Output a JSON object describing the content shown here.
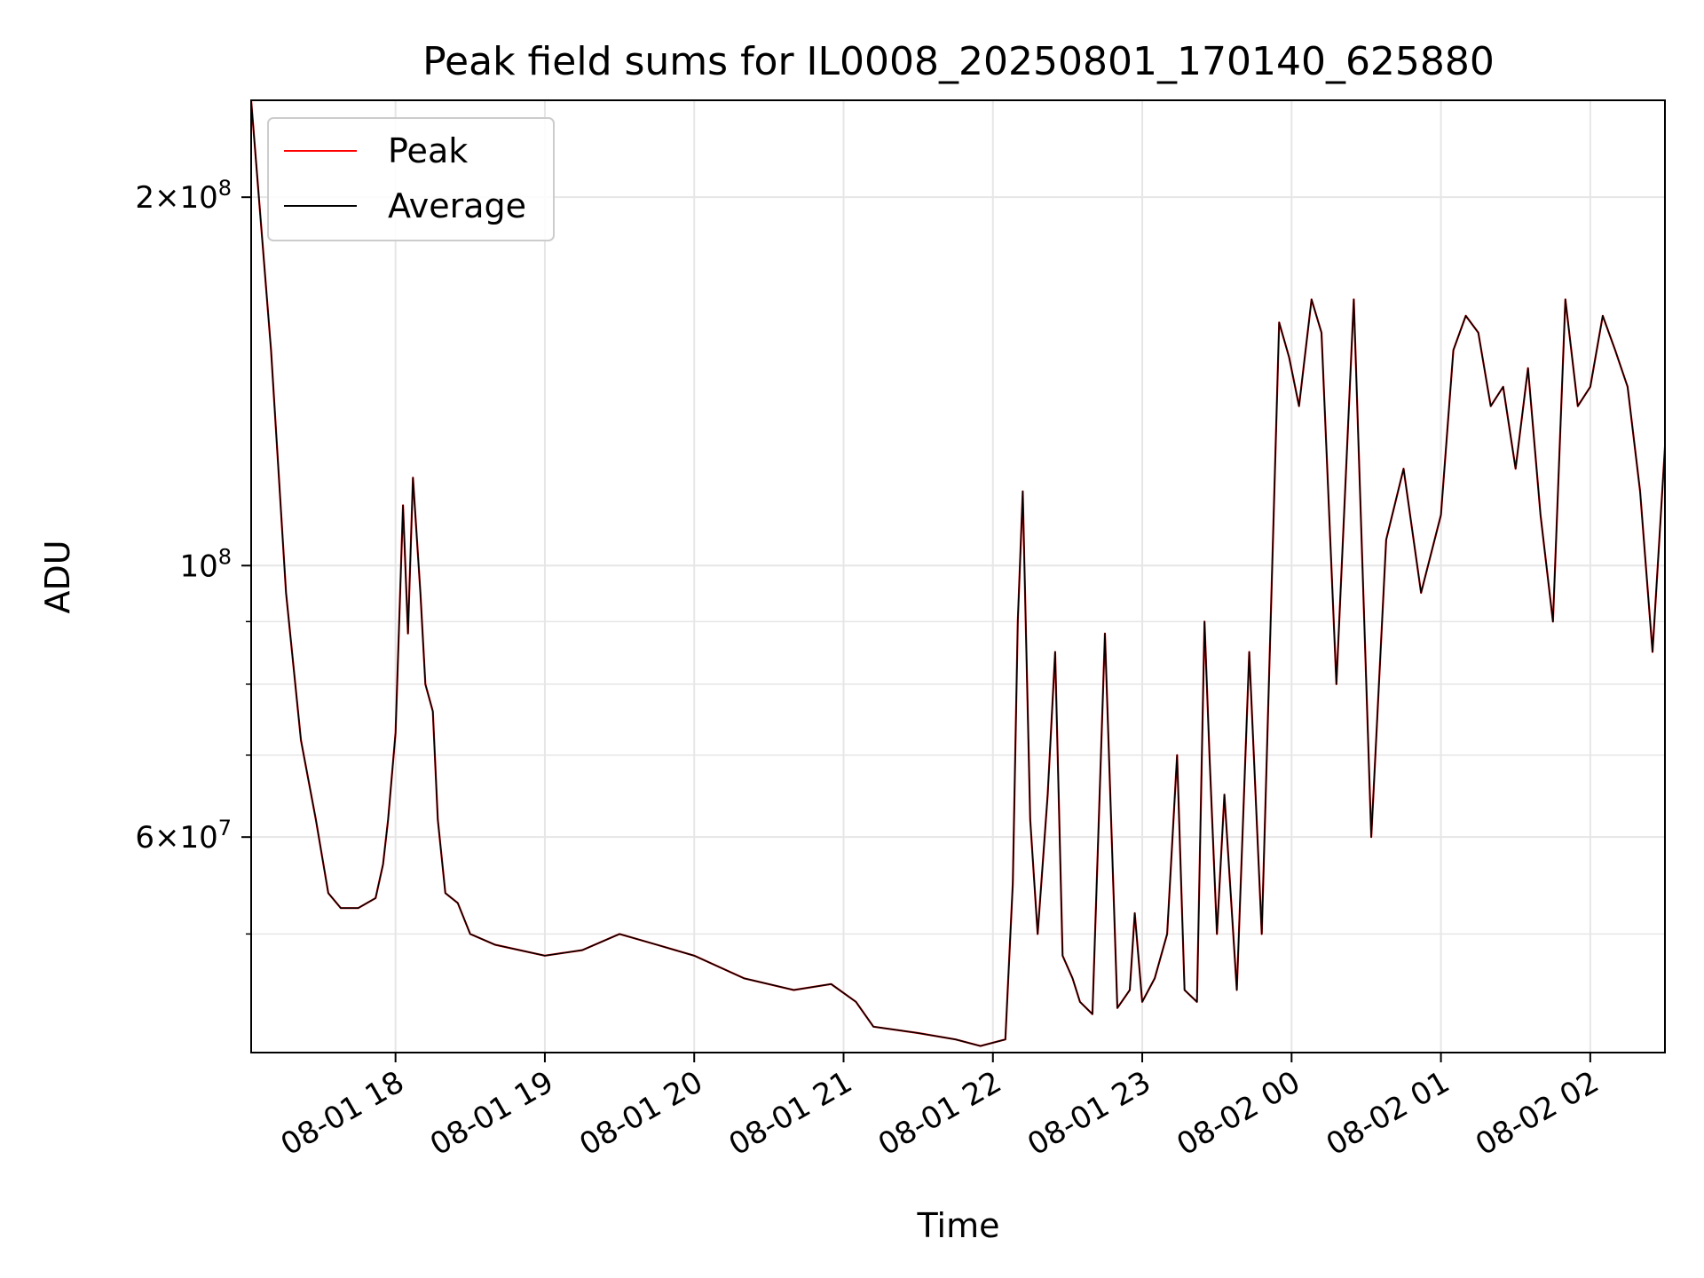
{
  "chart_data": {
    "type": "line",
    "title": "Peak field sums for IL0008_20250801_170140_625880",
    "xlabel": "Time",
    "ylabel": "ADU",
    "yscale": "log",
    "ylim": [
      40000000,
      240000000
    ],
    "xlim": [
      "2025-08-01 17:02",
      "2025-08-02 02:30"
    ],
    "x_tick_labels": [
      "08-01 18",
      "08-01 19",
      "08-01 20",
      "08-01 21",
      "08-01 22",
      "08-01 23",
      "08-02 00",
      "08-02 01",
      "08-02 02"
    ],
    "x_tick_times": [
      "2025-08-01 18:00",
      "2025-08-01 19:00",
      "2025-08-01 20:00",
      "2025-08-01 21:00",
      "2025-08-01 22:00",
      "2025-08-01 23:00",
      "2025-08-02 00:00",
      "2025-08-02 01:00",
      "2025-08-02 02:00"
    ],
    "y_tick_labels": [
      {
        "value": 200000000,
        "mantissa": "2",
        "exponent": "8"
      },
      {
        "value": 100000000,
        "mantissa": "",
        "exponent": "8"
      },
      {
        "value": 60000000,
        "mantissa": "6",
        "exponent": "7"
      }
    ],
    "y_minor_ticks": [
      50000000,
      70000000,
      80000000,
      90000000
    ],
    "grid": true,
    "legend_position": "upper-left",
    "series": [
      {
        "name": "Peak",
        "color": "#ff0000",
        "x": [
          "2025-08-01 17:02",
          "2025-08-01 17:10",
          "2025-08-01 17:16",
          "2025-08-01 17:22",
          "2025-08-01 17:28",
          "2025-08-01 17:33",
          "2025-08-01 17:38",
          "2025-08-01 17:45",
          "2025-08-01 17:52",
          "2025-08-01 17:55",
          "2025-08-01 17:57",
          "2025-08-01 18:00",
          "2025-08-01 18:03",
          "2025-08-01 18:05",
          "2025-08-01 18:07",
          "2025-08-01 18:10",
          "2025-08-01 18:12",
          "2025-08-01 18:15",
          "2025-08-01 18:17",
          "2025-08-01 18:20",
          "2025-08-01 18:25",
          "2025-08-01 18:30",
          "2025-08-01 18:40",
          "2025-08-01 19:00",
          "2025-08-01 19:15",
          "2025-08-01 19:30",
          "2025-08-01 19:45",
          "2025-08-01 20:00",
          "2025-08-01 20:20",
          "2025-08-01 20:40",
          "2025-08-01 20:55",
          "2025-08-01 21:05",
          "2025-08-01 21:12",
          "2025-08-01 21:30",
          "2025-08-01 21:45",
          "2025-08-01 21:55",
          "2025-08-01 22:05",
          "2025-08-01 22:08",
          "2025-08-01 22:10",
          "2025-08-01 22:12",
          "2025-08-01 22:15",
          "2025-08-01 22:18",
          "2025-08-01 22:22",
          "2025-08-01 22:25",
          "2025-08-01 22:28",
          "2025-08-01 22:32",
          "2025-08-01 22:35",
          "2025-08-01 22:40",
          "2025-08-01 22:45",
          "2025-08-01 22:50",
          "2025-08-01 22:55",
          "2025-08-01 22:57",
          "2025-08-01 23:00",
          "2025-08-01 23:05",
          "2025-08-01 23:10",
          "2025-08-01 23:14",
          "2025-08-01 23:17",
          "2025-08-01 23:22",
          "2025-08-01 23:25",
          "2025-08-01 23:27",
          "2025-08-01 23:30",
          "2025-08-01 23:33",
          "2025-08-01 23:38",
          "2025-08-01 23:43",
          "2025-08-01 23:48",
          "2025-08-01 23:55",
          "2025-08-01 23:59",
          "2025-08-02 00:03",
          "2025-08-02 00:08",
          "2025-08-02 00:12",
          "2025-08-02 00:18",
          "2025-08-02 00:25",
          "2025-08-02 00:32",
          "2025-08-02 00:38",
          "2025-08-02 00:45",
          "2025-08-02 00:52",
          "2025-08-02 01:00",
          "2025-08-02 01:05",
          "2025-08-02 01:10",
          "2025-08-02 01:15",
          "2025-08-02 01:20",
          "2025-08-02 01:25",
          "2025-08-02 01:30",
          "2025-08-02 01:35",
          "2025-08-02 01:40",
          "2025-08-02 01:45",
          "2025-08-02 01:50",
          "2025-08-02 01:55",
          "2025-08-02 02:00",
          "2025-08-02 02:05",
          "2025-08-02 02:10",
          "2025-08-02 02:15",
          "2025-08-02 02:20",
          "2025-08-02 02:25",
          "2025-08-02 02:30"
        ],
        "y": [
          240000000,
          150000000,
          95000000,
          72000000,
          62000000,
          54000000,
          52500000,
          52500000,
          53500000,
          57000000,
          62000000,
          73000000,
          112000000,
          88000000,
          118000000,
          95000000,
          80000000,
          76000000,
          62000000,
          54000000,
          53000000,
          50000000,
          49000000,
          48000000,
          48500000,
          50000000,
          49000000,
          48000000,
          46000000,
          45000000,
          45500000,
          44000000,
          42000000,
          41500000,
          41000000,
          40500000,
          41000000,
          55000000,
          90000000,
          115000000,
          62000000,
          50000000,
          65000000,
          85000000,
          48000000,
          46000000,
          44000000,
          43000000,
          88000000,
          43500000,
          45000000,
          52000000,
          44000000,
          46000000,
          50000000,
          70000000,
          45000000,
          44000000,
          90000000,
          70000000,
          50000000,
          65000000,
          45000000,
          85000000,
          50000000,
          158000000,
          148000000,
          135000000,
          165000000,
          155000000,
          80000000,
          165000000,
          60000000,
          105000000,
          120000000,
          95000000,
          110000000,
          150000000,
          160000000,
          155000000,
          135000000,
          140000000,
          120000000,
          145000000,
          110000000,
          90000000,
          165000000,
          135000000,
          140000000,
          160000000,
          150000000,
          140000000,
          115000000,
          85000000,
          125000000
        ]
      },
      {
        "name": "Average",
        "color": "#000000",
        "x": [
          "2025-08-01 17:02",
          "2025-08-01 17:10",
          "2025-08-01 17:16",
          "2025-08-01 17:22",
          "2025-08-01 17:28",
          "2025-08-01 17:33",
          "2025-08-01 17:38",
          "2025-08-01 17:45",
          "2025-08-01 17:52",
          "2025-08-01 17:55",
          "2025-08-01 17:57",
          "2025-08-01 18:00",
          "2025-08-01 18:03",
          "2025-08-01 18:05",
          "2025-08-01 18:07",
          "2025-08-01 18:10",
          "2025-08-01 18:12",
          "2025-08-01 18:15",
          "2025-08-01 18:17",
          "2025-08-01 18:20",
          "2025-08-01 18:25",
          "2025-08-01 18:30",
          "2025-08-01 18:40",
          "2025-08-01 19:00",
          "2025-08-01 19:15",
          "2025-08-01 19:30",
          "2025-08-01 19:45",
          "2025-08-01 20:00",
          "2025-08-01 20:20",
          "2025-08-01 20:40",
          "2025-08-01 20:55",
          "2025-08-01 21:05",
          "2025-08-01 21:12",
          "2025-08-01 21:30",
          "2025-08-01 21:45",
          "2025-08-01 21:55",
          "2025-08-01 22:05",
          "2025-08-01 22:08",
          "2025-08-01 22:10",
          "2025-08-01 22:12",
          "2025-08-01 22:15",
          "2025-08-01 22:18",
          "2025-08-01 22:22",
          "2025-08-01 22:25",
          "2025-08-01 22:28",
          "2025-08-01 22:32",
          "2025-08-01 22:35",
          "2025-08-01 22:40",
          "2025-08-01 22:45",
          "2025-08-01 22:50",
          "2025-08-01 22:55",
          "2025-08-01 22:57",
          "2025-08-01 23:00",
          "2025-08-01 23:05",
          "2025-08-01 23:10",
          "2025-08-01 23:14",
          "2025-08-01 23:17",
          "2025-08-01 23:22",
          "2025-08-01 23:25",
          "2025-08-01 23:27",
          "2025-08-01 23:30",
          "2025-08-01 23:33",
          "2025-08-01 23:38",
          "2025-08-01 23:43",
          "2025-08-01 23:48",
          "2025-08-01 23:55",
          "2025-08-01 23:59",
          "2025-08-02 00:03",
          "2025-08-02 00:08",
          "2025-08-02 00:12",
          "2025-08-02 00:18",
          "2025-08-02 00:25",
          "2025-08-02 00:32",
          "2025-08-02 00:38",
          "2025-08-02 00:45",
          "2025-08-02 00:52",
          "2025-08-02 01:00",
          "2025-08-02 01:05",
          "2025-08-02 01:10",
          "2025-08-02 01:15",
          "2025-08-02 01:20",
          "2025-08-02 01:25",
          "2025-08-02 01:30",
          "2025-08-02 01:35",
          "2025-08-02 01:40",
          "2025-08-02 01:45",
          "2025-08-02 01:50",
          "2025-08-02 01:55",
          "2025-08-02 02:00",
          "2025-08-02 02:05",
          "2025-08-02 02:10",
          "2025-08-02 02:15",
          "2025-08-02 02:20",
          "2025-08-02 02:25",
          "2025-08-02 02:30"
        ],
        "y": [
          240000000,
          150000000,
          95000000,
          72000000,
          62000000,
          54000000,
          52500000,
          52500000,
          53500000,
          57000000,
          62000000,
          73000000,
          112000000,
          88000000,
          118000000,
          95000000,
          80000000,
          76000000,
          62000000,
          54000000,
          53000000,
          50000000,
          49000000,
          48000000,
          48500000,
          50000000,
          49000000,
          48000000,
          46000000,
          45000000,
          45500000,
          44000000,
          42000000,
          41500000,
          41000000,
          40500000,
          41000000,
          55000000,
          90000000,
          115000000,
          62000000,
          50000000,
          65000000,
          85000000,
          48000000,
          46000000,
          44000000,
          43000000,
          88000000,
          43500000,
          45000000,
          52000000,
          44000000,
          46000000,
          50000000,
          70000000,
          45000000,
          44000000,
          90000000,
          70000000,
          50000000,
          65000000,
          45000000,
          85000000,
          50000000,
          158000000,
          148000000,
          135000000,
          165000000,
          155000000,
          80000000,
          165000000,
          60000000,
          105000000,
          120000000,
          95000000,
          110000000,
          150000000,
          160000000,
          155000000,
          135000000,
          140000000,
          120000000,
          145000000,
          110000000,
          90000000,
          165000000,
          135000000,
          140000000,
          160000000,
          150000000,
          140000000,
          115000000,
          85000000,
          125000000
        ]
      }
    ]
  }
}
